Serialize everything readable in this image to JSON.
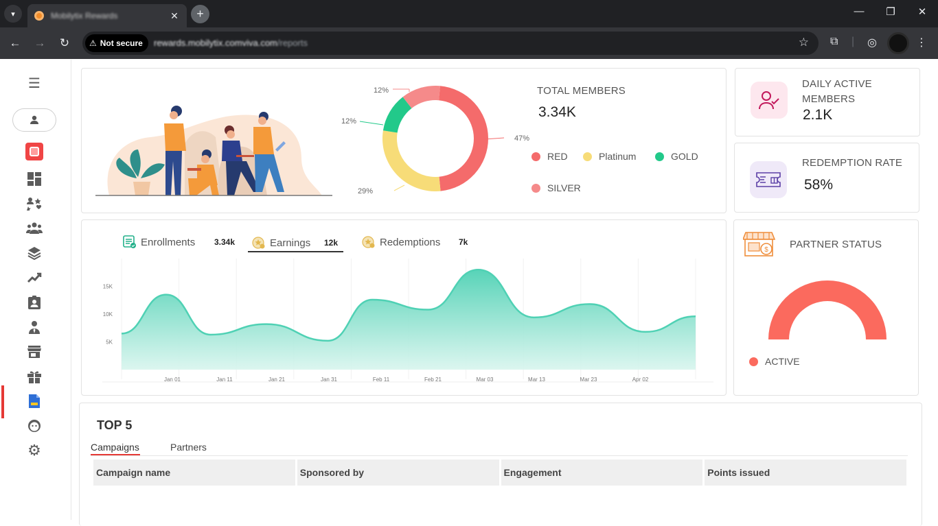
{
  "browser": {
    "tab_title": "Mobilytix Rewards",
    "security_label": "Not secure",
    "url_host": "rewards.mobilytix.comviva.com",
    "url_path": "/reports"
  },
  "summary": {
    "total_members_label": "TOTAL MEMBERS",
    "total_members_value": "3.34K",
    "tier_donut": [
      {
        "name": "RED",
        "percent": 47,
        "percent_label": "47%",
        "color": "#f46b6b"
      },
      {
        "name": "Platinum",
        "percent": 29,
        "percent_label": "29%",
        "color": "#f7dc78"
      },
      {
        "name": "GOLD",
        "percent": 12,
        "percent_label": "12%",
        "color": "#22c98a"
      },
      {
        "name": "SILVER",
        "percent": 12,
        "percent_label": "12%",
        "color": "#f58a8a"
      }
    ]
  },
  "daily_active": {
    "label": "DAILY ACTIVE MEMBERS",
    "value": "2.1K"
  },
  "redemption": {
    "label": "REDEMPTION RATE",
    "value": "58%"
  },
  "partner_status": {
    "label": "PARTNER STATUS",
    "legend": "ACTIVE",
    "active_fraction": 1.0,
    "color": "#fb6a5e"
  },
  "trend": {
    "tabs": [
      {
        "label": "Enrollments",
        "count": "3.34k"
      },
      {
        "label": "Earnings",
        "count": "12k"
      },
      {
        "label": "Redemptions",
        "count": "7k"
      }
    ],
    "active_tab": "Earnings"
  },
  "chart_data": {
    "type": "area",
    "title": "",
    "xlabel": "",
    "ylabel": "",
    "x_tick_labels": [
      "Jan 01",
      "Jan 11",
      "Jan 21",
      "Jan 31",
      "Feb 11",
      "Feb 21",
      "Mar 03",
      "Mar 13",
      "Mar 23",
      "Apr 02"
    ],
    "y_tick_labels": [
      "5K",
      "10K",
      "15K"
    ],
    "ylim": [
      0,
      20000
    ],
    "points": [
      {
        "x": 0,
        "y": 6500
      },
      {
        "x": 8,
        "y": 13500
      },
      {
        "x": 16,
        "y": 6300
      },
      {
        "x": 26,
        "y": 8200
      },
      {
        "x": 37,
        "y": 5200
      },
      {
        "x": 45,
        "y": 12600
      },
      {
        "x": 55,
        "y": 10800
      },
      {
        "x": 64,
        "y": 18000
      },
      {
        "x": 74,
        "y": 9400
      },
      {
        "x": 84,
        "y": 11800
      },
      {
        "x": 94,
        "y": 6800
      },
      {
        "x": 103,
        "y": 9600
      }
    ],
    "x_range": [
      0,
      103
    ],
    "series_color": "#4fd1b4"
  },
  "top5": {
    "title": "TOP 5",
    "tabs": [
      "Campaigns",
      "Partners"
    ],
    "active_tab": "Campaigns",
    "columns": [
      "Campaign name",
      "Sponsored by",
      "Engagement",
      "Points issued"
    ]
  }
}
